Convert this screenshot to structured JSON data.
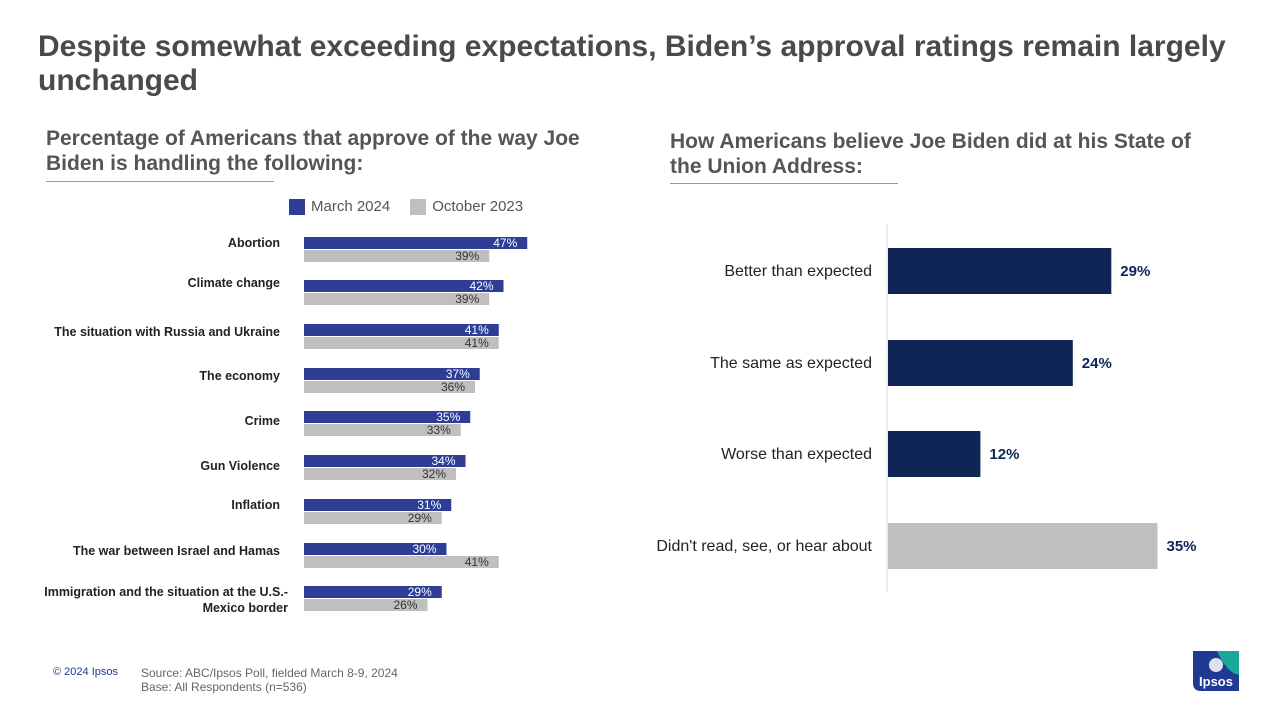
{
  "title": "Despite somewhat exceeding expectations, Biden’s approval ratings remain largely unchanged",
  "footer": {
    "copyright": "© 2024 Ipsos",
    "source": "Source: ABC/Ipsos Poll, fielded March 8-9, 2024",
    "base": "Base: All Respondents (n=536)",
    "logo_text": "Ipsos"
  },
  "colors": {
    "march": "#2e3d96",
    "october": "#bfbfbf",
    "navy": "#0f2556",
    "gray": "#bfbfbf"
  },
  "chart_data": [
    {
      "type": "bar",
      "orientation": "horizontal",
      "title": "Percentage of Americans that approve of the way Joe Biden is handling the following:",
      "categories": [
        "Abortion",
        "Climate change",
        "The situation with Russia and Ukraine",
        "The economy",
        "Crime",
        "Gun Violence",
        "Inflation",
        "The war between Israel and Hamas",
        "Immigration and the situation at the U.S.-Mexico border"
      ],
      "series": [
        {
          "name": "March 2024",
          "values": [
            47,
            42,
            41,
            37,
            35,
            34,
            31,
            30,
            29
          ]
        },
        {
          "name": "October 2023",
          "values": [
            39,
            39,
            41,
            36,
            33,
            32,
            29,
            41,
            26
          ]
        }
      ],
      "unit": "%",
      "legend": "top"
    },
    {
      "type": "bar",
      "orientation": "horizontal",
      "title": "How Americans believe Joe Biden did at his State of the Union Address:",
      "categories": [
        "Better than expected",
        "The same as expected",
        "Worse than expected",
        "Didn't read, see, or hear about"
      ],
      "values": [
        29,
        24,
        12,
        35
      ],
      "unit": "%"
    }
  ]
}
